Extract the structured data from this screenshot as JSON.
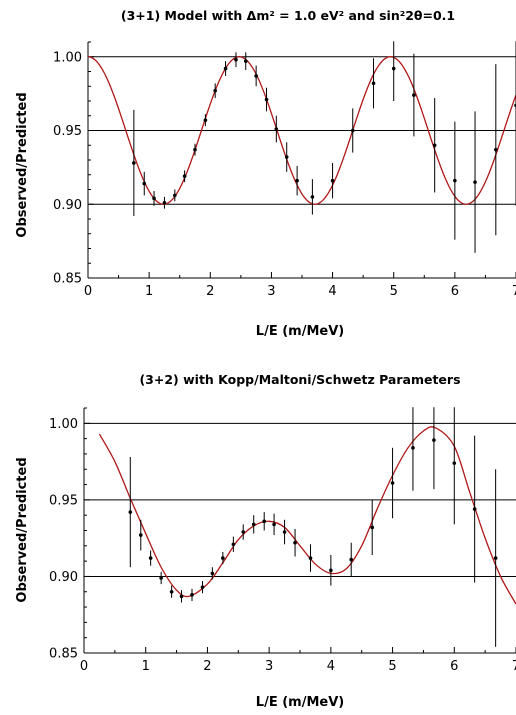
{
  "chart_data": [
    {
      "type": "scatter",
      "title": "(3+1) Model with Δm² = 1.0 eV² and sin²2θ=0.1",
      "xlabel": "L/E (m/MeV)",
      "ylabel": "Observed/Predicted",
      "xlim": [
        0,
        7
      ],
      "ylim": [
        0.85,
        1.01
      ],
      "xticks": [
        "0",
        "1",
        "2",
        "3",
        "4",
        "5",
        "6",
        "7"
      ],
      "yticks": [
        "0.85",
        "0.90",
        "0.95",
        "1.00"
      ],
      "grid": "horizontal at 0.90, 0.95, 1.00",
      "curve": {
        "model": "3+1",
        "dm2": 1.0,
        "sin2_2theta": 0.1,
        "formula": "1 - sin2_2theta * sin^2(1.27 * dm2 * L/E)",
        "x_range": [
          0,
          7
        ]
      },
      "series": [
        {
          "points": [
            {
              "x": 0.75,
              "y": 0.928,
              "err": 0.036
            },
            {
              "x": 0.92,
              "y": 0.914,
              "err": 0.008
            },
            {
              "x": 1.08,
              "y": 0.904,
              "err": 0.005
            },
            {
              "x": 1.25,
              "y": 0.901,
              "err": 0.004
            },
            {
              "x": 1.42,
              "y": 0.906,
              "err": 0.004
            },
            {
              "x": 1.58,
              "y": 0.919,
              "err": 0.004
            },
            {
              "x": 1.75,
              "y": 0.937,
              "err": 0.004
            },
            {
              "x": 1.92,
              "y": 0.957,
              "err": 0.004
            },
            {
              "x": 2.08,
              "y": 0.977,
              "err": 0.005
            },
            {
              "x": 2.25,
              "y": 0.992,
              "err": 0.005
            },
            {
              "x": 2.42,
              "y": 0.998,
              "err": 0.005
            },
            {
              "x": 2.58,
              "y": 0.997,
              "err": 0.006
            },
            {
              "x": 2.75,
              "y": 0.987,
              "err": 0.007
            },
            {
              "x": 2.92,
              "y": 0.971,
              "err": 0.008
            },
            {
              "x": 3.08,
              "y": 0.951,
              "err": 0.009
            },
            {
              "x": 3.25,
              "y": 0.932,
              "err": 0.01
            },
            {
              "x": 3.42,
              "y": 0.916,
              "err": 0.01
            },
            {
              "x": 3.67,
              "y": 0.905,
              "err": 0.012
            },
            {
              "x": 4.0,
              "y": 0.916,
              "err": 0.012
            },
            {
              "x": 4.33,
              "y": 0.95,
              "err": 0.015
            },
            {
              "x": 4.67,
              "y": 0.982,
              "err": 0.017
            },
            {
              "x": 5.0,
              "y": 0.992,
              "err": 0.022
            },
            {
              "x": 5.33,
              "y": 0.974,
              "err": 0.028
            },
            {
              "x": 5.67,
              "y": 0.94,
              "err": 0.032
            },
            {
              "x": 6.0,
              "y": 0.916,
              "err": 0.04
            },
            {
              "x": 6.33,
              "y": 0.915,
              "err": 0.048
            },
            {
              "x": 6.67,
              "y": 0.937,
              "err": 0.058
            },
            {
              "x": 7.0,
              "y": 0.967,
              "err": 0.068
            }
          ]
        }
      ]
    },
    {
      "type": "scatter",
      "title": "(3+2) with Kopp/Maltoni/Schwetz Parameters",
      "xlabel": "L/E (m/MeV)",
      "ylabel": "Observed/Predicted",
      "xlim": [
        0,
        7
      ],
      "ylim": [
        0.85,
        1.01
      ],
      "xticks": [
        "0",
        "1",
        "2",
        "3",
        "4",
        "5",
        "6",
        "7"
      ],
      "yticks": [
        "0.85",
        "0.90",
        "0.95",
        "1.00"
      ],
      "grid": "horizontal at 0.90, 0.95, 1.00",
      "curve": {
        "model": "3+2",
        "x_range": [
          0.25,
          7
        ],
        "knots": [
          {
            "x": 0.25,
            "y": 0.993
          },
          {
            "x": 0.5,
            "y": 0.975
          },
          {
            "x": 0.75,
            "y": 0.951
          },
          {
            "x": 1.0,
            "y": 0.928
          },
          {
            "x": 1.25,
            "y": 0.906
          },
          {
            "x": 1.5,
            "y": 0.891
          },
          {
            "x": 1.7,
            "y": 0.887
          },
          {
            "x": 2.0,
            "y": 0.895
          },
          {
            "x": 2.25,
            "y": 0.909
          },
          {
            "x": 2.5,
            "y": 0.924
          },
          {
            "x": 2.75,
            "y": 0.933
          },
          {
            "x": 3.0,
            "y": 0.936
          },
          {
            "x": 3.25,
            "y": 0.932
          },
          {
            "x": 3.5,
            "y": 0.92
          },
          {
            "x": 3.75,
            "y": 0.908
          },
          {
            "x": 4.0,
            "y": 0.902
          },
          {
            "x": 4.25,
            "y": 0.905
          },
          {
            "x": 4.5,
            "y": 0.92
          },
          {
            "x": 4.75,
            "y": 0.944
          },
          {
            "x": 5.0,
            "y": 0.966
          },
          {
            "x": 5.25,
            "y": 0.984
          },
          {
            "x": 5.5,
            "y": 0.995
          },
          {
            "x": 5.7,
            "y": 0.997
          },
          {
            "x": 6.0,
            "y": 0.985
          },
          {
            "x": 6.25,
            "y": 0.955
          },
          {
            "x": 6.5,
            "y": 0.925
          },
          {
            "x": 6.75,
            "y": 0.9
          },
          {
            "x": 7.0,
            "y": 0.882
          }
        ]
      },
      "series": [
        {
          "points": [
            {
              "x": 0.75,
              "y": 0.942,
              "err": 0.036
            },
            {
              "x": 0.92,
              "y": 0.927,
              "err": 0.01
            },
            {
              "x": 1.08,
              "y": 0.912,
              "err": 0.005
            },
            {
              "x": 1.25,
              "y": 0.899,
              "err": 0.004
            },
            {
              "x": 1.42,
              "y": 0.89,
              "err": 0.004
            },
            {
              "x": 1.58,
              "y": 0.887,
              "err": 0.004
            },
            {
              "x": 1.75,
              "y": 0.888,
              "err": 0.004
            },
            {
              "x": 1.92,
              "y": 0.893,
              "err": 0.004
            },
            {
              "x": 2.08,
              "y": 0.902,
              "err": 0.004
            },
            {
              "x": 2.25,
              "y": 0.912,
              "err": 0.004
            },
            {
              "x": 2.42,
              "y": 0.921,
              "err": 0.005
            },
            {
              "x": 2.58,
              "y": 0.929,
              "err": 0.005
            },
            {
              "x": 2.75,
              "y": 0.934,
              "err": 0.006
            },
            {
              "x": 2.92,
              "y": 0.936,
              "err": 0.006
            },
            {
              "x": 3.08,
              "y": 0.934,
              "err": 0.007
            },
            {
              "x": 3.25,
              "y": 0.929,
              "err": 0.008
            },
            {
              "x": 3.42,
              "y": 0.922,
              "err": 0.009
            },
            {
              "x": 3.67,
              "y": 0.912,
              "err": 0.009
            },
            {
              "x": 4.0,
              "y": 0.904,
              "err": 0.01
            },
            {
              "x": 4.33,
              "y": 0.911,
              "err": 0.011
            },
            {
              "x": 4.67,
              "y": 0.932,
              "err": 0.018
            },
            {
              "x": 5.0,
              "y": 0.961,
              "err": 0.023
            },
            {
              "x": 5.33,
              "y": 0.984,
              "err": 0.028
            },
            {
              "x": 5.67,
              "y": 0.989,
              "err": 0.032
            },
            {
              "x": 6.0,
              "y": 0.974,
              "err": 0.04
            },
            {
              "x": 6.33,
              "y": 0.944,
              "err": 0.048
            },
            {
              "x": 6.67,
              "y": 0.912,
              "err": 0.058
            }
          ]
        }
      ]
    }
  ]
}
